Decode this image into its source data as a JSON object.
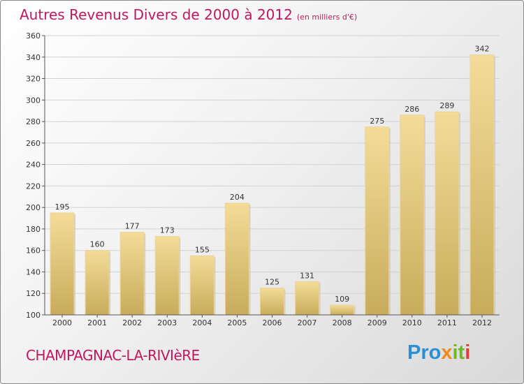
{
  "title": {
    "main": "Autres Revenus Divers de 2000 à 2012",
    "unit": "(en milliers d'€)"
  },
  "commune": "CHAMPAGNAC-LA-RIVIèRE",
  "logo": {
    "text": "Proxiti",
    "letters": [
      "Pro",
      "x",
      "it",
      "i"
    ],
    "colors": [
      "#2a8fd6",
      "#f08a1c",
      "#6fb62c",
      "#e73a3a"
    ]
  },
  "colors": {
    "title": "#c0185f",
    "bar_light": "#f4dc98",
    "bar_dark": "#c8ac5c"
  },
  "chart_data": {
    "type": "bar",
    "title": "Autres Revenus Divers de 2000 à 2012",
    "subtitle": "(en milliers d'€)",
    "xlabel": "",
    "ylabel": "",
    "categories": [
      "2000",
      "2001",
      "2002",
      "2003",
      "2004",
      "2005",
      "2006",
      "2007",
      "2008",
      "2009",
      "2010",
      "2011",
      "2012"
    ],
    "values": [
      195,
      160,
      177,
      173,
      155,
      204,
      125,
      131,
      109,
      275,
      286,
      289,
      342
    ],
    "ylim": [
      100,
      360
    ],
    "yticks": [
      100,
      120,
      140,
      160,
      180,
      200,
      220,
      240,
      260,
      280,
      300,
      320,
      340,
      360
    ],
    "grid": true,
    "legend": "none"
  }
}
